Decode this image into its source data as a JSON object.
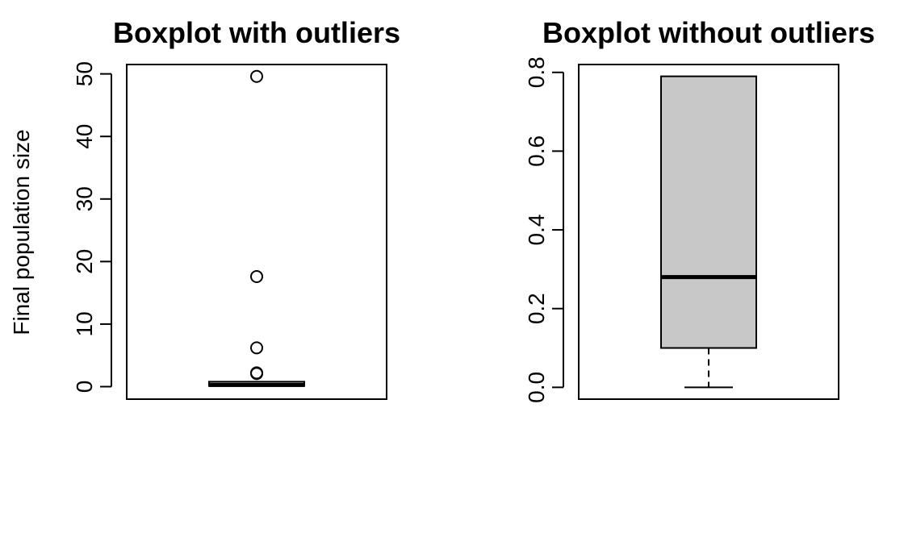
{
  "chart_data": [
    {
      "type": "boxplot",
      "title": "Boxplot with outliers",
      "ylabel": "Final population size",
      "ylim": [
        -2,
        51.5
      ],
      "yticks": [
        0,
        10,
        20,
        30,
        40,
        50
      ],
      "box": {
        "min": 0.0,
        "q1": 0.1,
        "median": 0.28,
        "q3": 0.79,
        "max": 0.79
      },
      "outliers": [
        49.6,
        17.6,
        6.2,
        2.2,
        2.1
      ],
      "box_fill": "#c8c8c8"
    },
    {
      "type": "boxplot",
      "title": "Boxplot without outliers",
      "ylabel": "",
      "ylim": [
        -0.03,
        0.82
      ],
      "yticks": [
        0.0,
        0.2,
        0.4,
        0.6,
        0.8
      ],
      "ytick_labels": [
        "0.0",
        "0.2",
        "0.4",
        "0.6",
        "0.8"
      ],
      "box": {
        "min": 0.0,
        "q1": 0.1,
        "median": 0.28,
        "q3": 0.79,
        "max": 0.79
      },
      "outliers": [],
      "box_fill": "#c8c8c8"
    }
  ]
}
